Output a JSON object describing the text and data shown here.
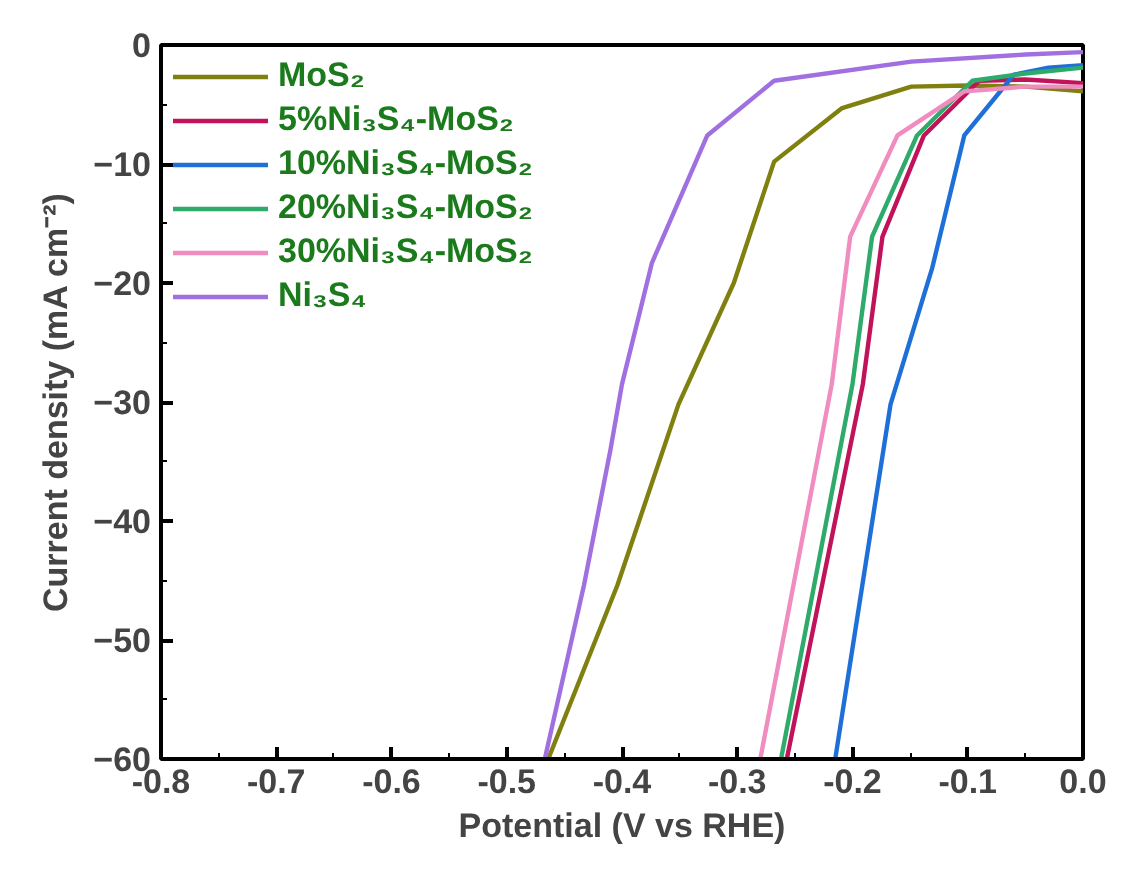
{
  "chart_data": {
    "type": "line",
    "xlabel": "Potential (V vs RHE)",
    "ylabel": "Current density (mA cm⁻²)",
    "xlim": [
      -0.8,
      0.0
    ],
    "ylim": [
      -60,
      0
    ],
    "xticks": [
      {
        "value": -0.8,
        "label": "-0.8"
      },
      {
        "value": -0.7,
        "label": "-0.7"
      },
      {
        "value": -0.6,
        "label": "-0.6"
      },
      {
        "value": -0.5,
        "label": "-0.5"
      },
      {
        "value": -0.4,
        "label": "-0.4"
      },
      {
        "value": -0.3,
        "label": "-0.3"
      },
      {
        "value": -0.2,
        "label": "-0.2"
      },
      {
        "value": -0.1,
        "label": "-0.1"
      },
      {
        "value": 0.0,
        "label": "0.0"
      }
    ],
    "yticks": [
      -60,
      -50,
      -40,
      -30,
      -20,
      -10,
      0
    ],
    "grid": false,
    "legend": "top left",
    "marker": "none",
    "line_style": "solid",
    "series": [
      {
        "name": "MoS₂",
        "color": "#808010",
        "x": [
          -0.464,
          -0.404,
          -0.351,
          -0.303,
          -0.268,
          -0.209,
          -0.149,
          -0.1,
          -0.05,
          0.0
        ],
        "values": [
          -60,
          -45.4,
          -30.2,
          -20,
          -9.8,
          -5.3,
          -3.5,
          -3.4,
          -3.5,
          -3.9
        ]
      },
      {
        "name": "5%Ni₃S₄-MoS₂",
        "color": "#c0135a",
        "x": [
          -0.257,
          -0.191,
          -0.174,
          -0.138,
          -0.09,
          -0.05,
          0.0
        ],
        "values": [
          -60,
          -28.5,
          -16.1,
          -7.6,
          -3.0,
          -2.9,
          -3.2
        ]
      },
      {
        "name": "10%Ni₃S₄-MoS₂",
        "color": "#1f6fd8",
        "x": [
          -0.215,
          -0.167,
          -0.131,
          -0.103,
          -0.06,
          -0.03,
          0.0
        ],
        "values": [
          -60,
          -30.2,
          -18.8,
          -7.6,
          -2.5,
          -1.9,
          -1.7
        ]
      },
      {
        "name": "20%Ni₃S₄-MoS₂",
        "color": "#2eaa6a",
        "x": [
          -0.262,
          -0.2,
          -0.183,
          -0.144,
          -0.096,
          -0.05,
          0.0
        ],
        "values": [
          -60,
          -28.5,
          -16.1,
          -7.6,
          -3.0,
          -2.4,
          -1.9
        ]
      },
      {
        "name": "30%Ni₃S₄-MoS₂",
        "color": "#f08cc0",
        "x": [
          -0.28,
          -0.218,
          -0.202,
          -0.161,
          -0.103,
          -0.05,
          0.0
        ],
        "values": [
          -60,
          -28.5,
          -16.1,
          -7.6,
          -3.9,
          -3.5,
          -3.5
        ]
      },
      {
        "name": "Ni₃S₄",
        "color": "#a070e0",
        "x": [
          -0.467,
          -0.433,
          -0.41,
          -0.4,
          -0.374,
          -0.326,
          -0.268,
          -0.149,
          -0.05,
          0.0
        ],
        "values": [
          -60,
          -45.4,
          -34,
          -28.5,
          -18.3,
          -7.6,
          -3.0,
          -1.4,
          -0.8,
          -0.6
        ]
      }
    ]
  }
}
